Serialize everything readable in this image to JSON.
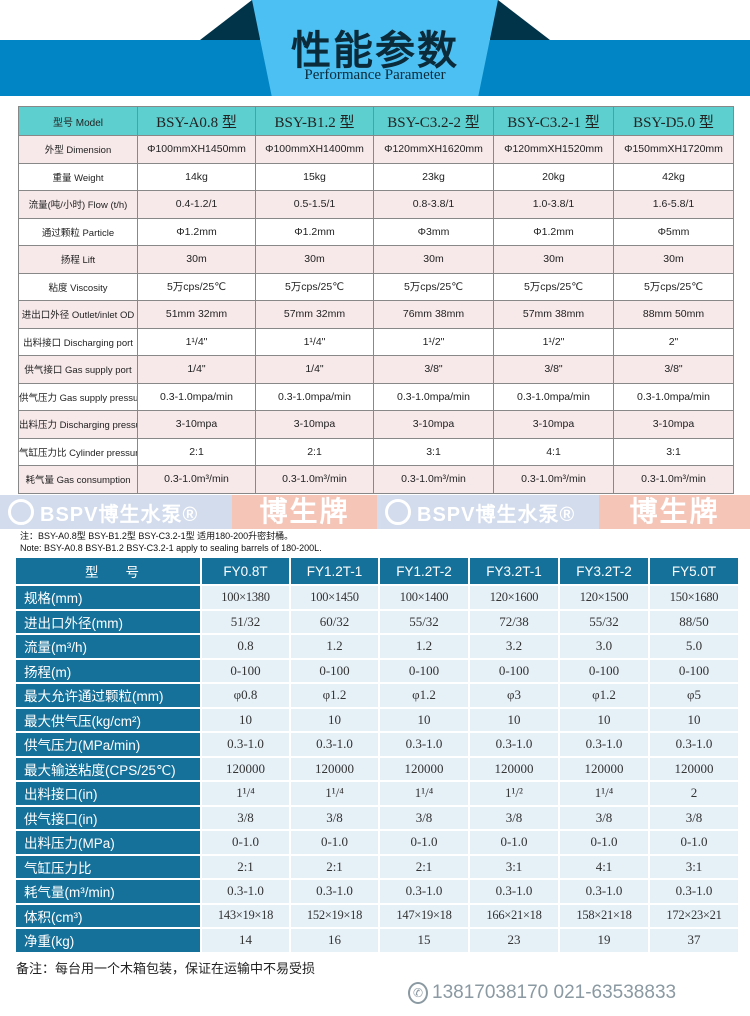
{
  "header": {
    "title": "性能参数",
    "subtitle": "Performance Parameter"
  },
  "table1": {
    "header": [
      "型号 Model",
      "BSY-A0.8 型",
      "BSY-B1.2 型",
      "BSY-C3.2-2 型",
      "BSY-C3.2-1 型",
      "BSY-D5.0 型"
    ],
    "rows": [
      [
        "外型 Dimension",
        "Φ100mmXH1450mm",
        "Φ100mmXH1400mm",
        "Φ120mmXH1620mm",
        "Φ120mmXH1520mm",
        "Φ150mmXH1720mm"
      ],
      [
        "重量 Weight",
        "14kg",
        "15kg",
        "23kg",
        "20kg",
        "42kg"
      ],
      [
        "流量(吨/小时) Flow (t/h)",
        "0.4-1.2/1",
        "0.5-1.5/1",
        "0.8-3.8/1",
        "1.0-3.8/1",
        "1.6-5.8/1"
      ],
      [
        "通过颗粒 Particle",
        "Φ1.2mm",
        "Φ1.2mm",
        "Φ3mm",
        "Φ1.2mm",
        "Φ5mm"
      ],
      [
        "扬程 Lift",
        "30m",
        "30m",
        "30m",
        "30m",
        "30m"
      ],
      [
        "粘度 Viscosity",
        "5万cps/25℃",
        "5万cps/25℃",
        "5万cps/25℃",
        "5万cps/25℃",
        "5万cps/25℃"
      ],
      [
        "进出口外径 Outlet/inlet OD",
        "51mm 32mm",
        "57mm 32mm",
        "76mm 38mm",
        "57mm 38mm",
        "88mm 50mm"
      ],
      [
        "出料接口 Discharging port",
        "1¹/4\"",
        "1¹/4\"",
        "1¹/2\"",
        "1¹/2\"",
        "2\""
      ],
      [
        "供气接口 Gas supply port",
        "1/4\"",
        "1/4\"",
        "3/8\"",
        "3/8\"",
        "3/8\""
      ],
      [
        "供气压力 Gas supply pressure",
        "0.3-1.0mpa/min",
        "0.3-1.0mpa/min",
        "0.3-1.0mpa/min",
        "0.3-1.0mpa/min",
        "0.3-1.0mpa/min"
      ],
      [
        "出料压力 Discharging pressure",
        "3-10mpa",
        "3-10mpa",
        "3-10mpa",
        "3-10mpa",
        "3-10mpa"
      ],
      [
        "气缸压力比 Cylinder pressure ratio",
        "2:1",
        "2:1",
        "3:1",
        "4:1",
        "3:1"
      ],
      [
        "耗气量 Gas consumption",
        "0.3-1.0m³/min",
        "0.3-1.0m³/min",
        "0.3-1.0m³/min",
        "0.3-1.0m³/min",
        "0.3-1.0m³/min"
      ]
    ],
    "note_cn": "注：BSY-A0.8型 BSY-B1.2型 BSY-C3.2-1型 适用180-200升密封桶。",
    "note_en": "Note: BSY-A0.8 BSY-B1.2 BSY-C3.2-1 apply to sealing barrels of 180-200L."
  },
  "watermark": {
    "brand": "BSPV博生水泵®",
    "brand_cn": "博生牌"
  },
  "table2": {
    "header": [
      "型　　号",
      "FY0.8T",
      "FY1.2T-1",
      "FY1.2T-2",
      "FY3.2T-1",
      "FY3.2T-2",
      "FY5.0T"
    ],
    "rows": [
      [
        "规格(mm)",
        "100×1380",
        "100×1450",
        "100×1400",
        "120×1600",
        "120×1500",
        "150×1680"
      ],
      [
        "进出口外径(mm)",
        "51/32",
        "60/32",
        "55/32",
        "72/38",
        "55/32",
        "88/50"
      ],
      [
        "流量(m³/h)",
        "0.8",
        "1.2",
        "1.2",
        "3.2",
        "3.0",
        "5.0"
      ],
      [
        "扬程(m)",
        "0-100",
        "0-100",
        "0-100",
        "0-100",
        "0-100",
        "0-100"
      ],
      [
        "最大允许通过颗粒(mm)",
        "φ0.8",
        "φ1.2",
        "φ1.2",
        "φ3",
        "φ1.2",
        "φ5"
      ],
      [
        "最大供气压(kg/cm²)",
        "10",
        "10",
        "10",
        "10",
        "10",
        "10"
      ],
      [
        "供气压力(MPa/min)",
        "0.3-1.0",
        "0.3-1.0",
        "0.3-1.0",
        "0.3-1.0",
        "0.3-1.0",
        "0.3-1.0"
      ],
      [
        "最大输送粘度(CPS/25℃)",
        "120000",
        "120000",
        "120000",
        "120000",
        "120000",
        "120000"
      ],
      [
        "出料接口(in)",
        "1¹/⁴",
        "1¹/⁴",
        "1¹/⁴",
        "1¹/²",
        "1¹/⁴",
        "2"
      ],
      [
        "供气接口(in)",
        "3/8",
        "3/8",
        "3/8",
        "3/8",
        "3/8",
        "3/8"
      ],
      [
        "出料压力(MPa)",
        "0-1.0",
        "0-1.0",
        "0-1.0",
        "0-1.0",
        "0-1.0",
        "0-1.0"
      ],
      [
        "气缸压力比",
        "2:1",
        "2:1",
        "2:1",
        "3:1",
        "4:1",
        "3:1"
      ],
      [
        "耗气量(m³/min)",
        "0.3-1.0",
        "0.3-1.0",
        "0.3-1.0",
        "0.3-1.0",
        "0.3-1.0",
        "0.3-1.0"
      ],
      [
        "体积(cm³)",
        "143×19×18",
        "152×19×18",
        "147×19×18",
        "166×21×18",
        "158×21×18",
        "172×23×21"
      ],
      [
        "净重(kg)",
        "14",
        "16",
        "15",
        "23",
        "19",
        "37"
      ]
    ]
  },
  "footer": {
    "remark": "备注：每台用一个木箱包装，保证在运输中不易受损",
    "phone": "13817038170  021-63538833"
  }
}
